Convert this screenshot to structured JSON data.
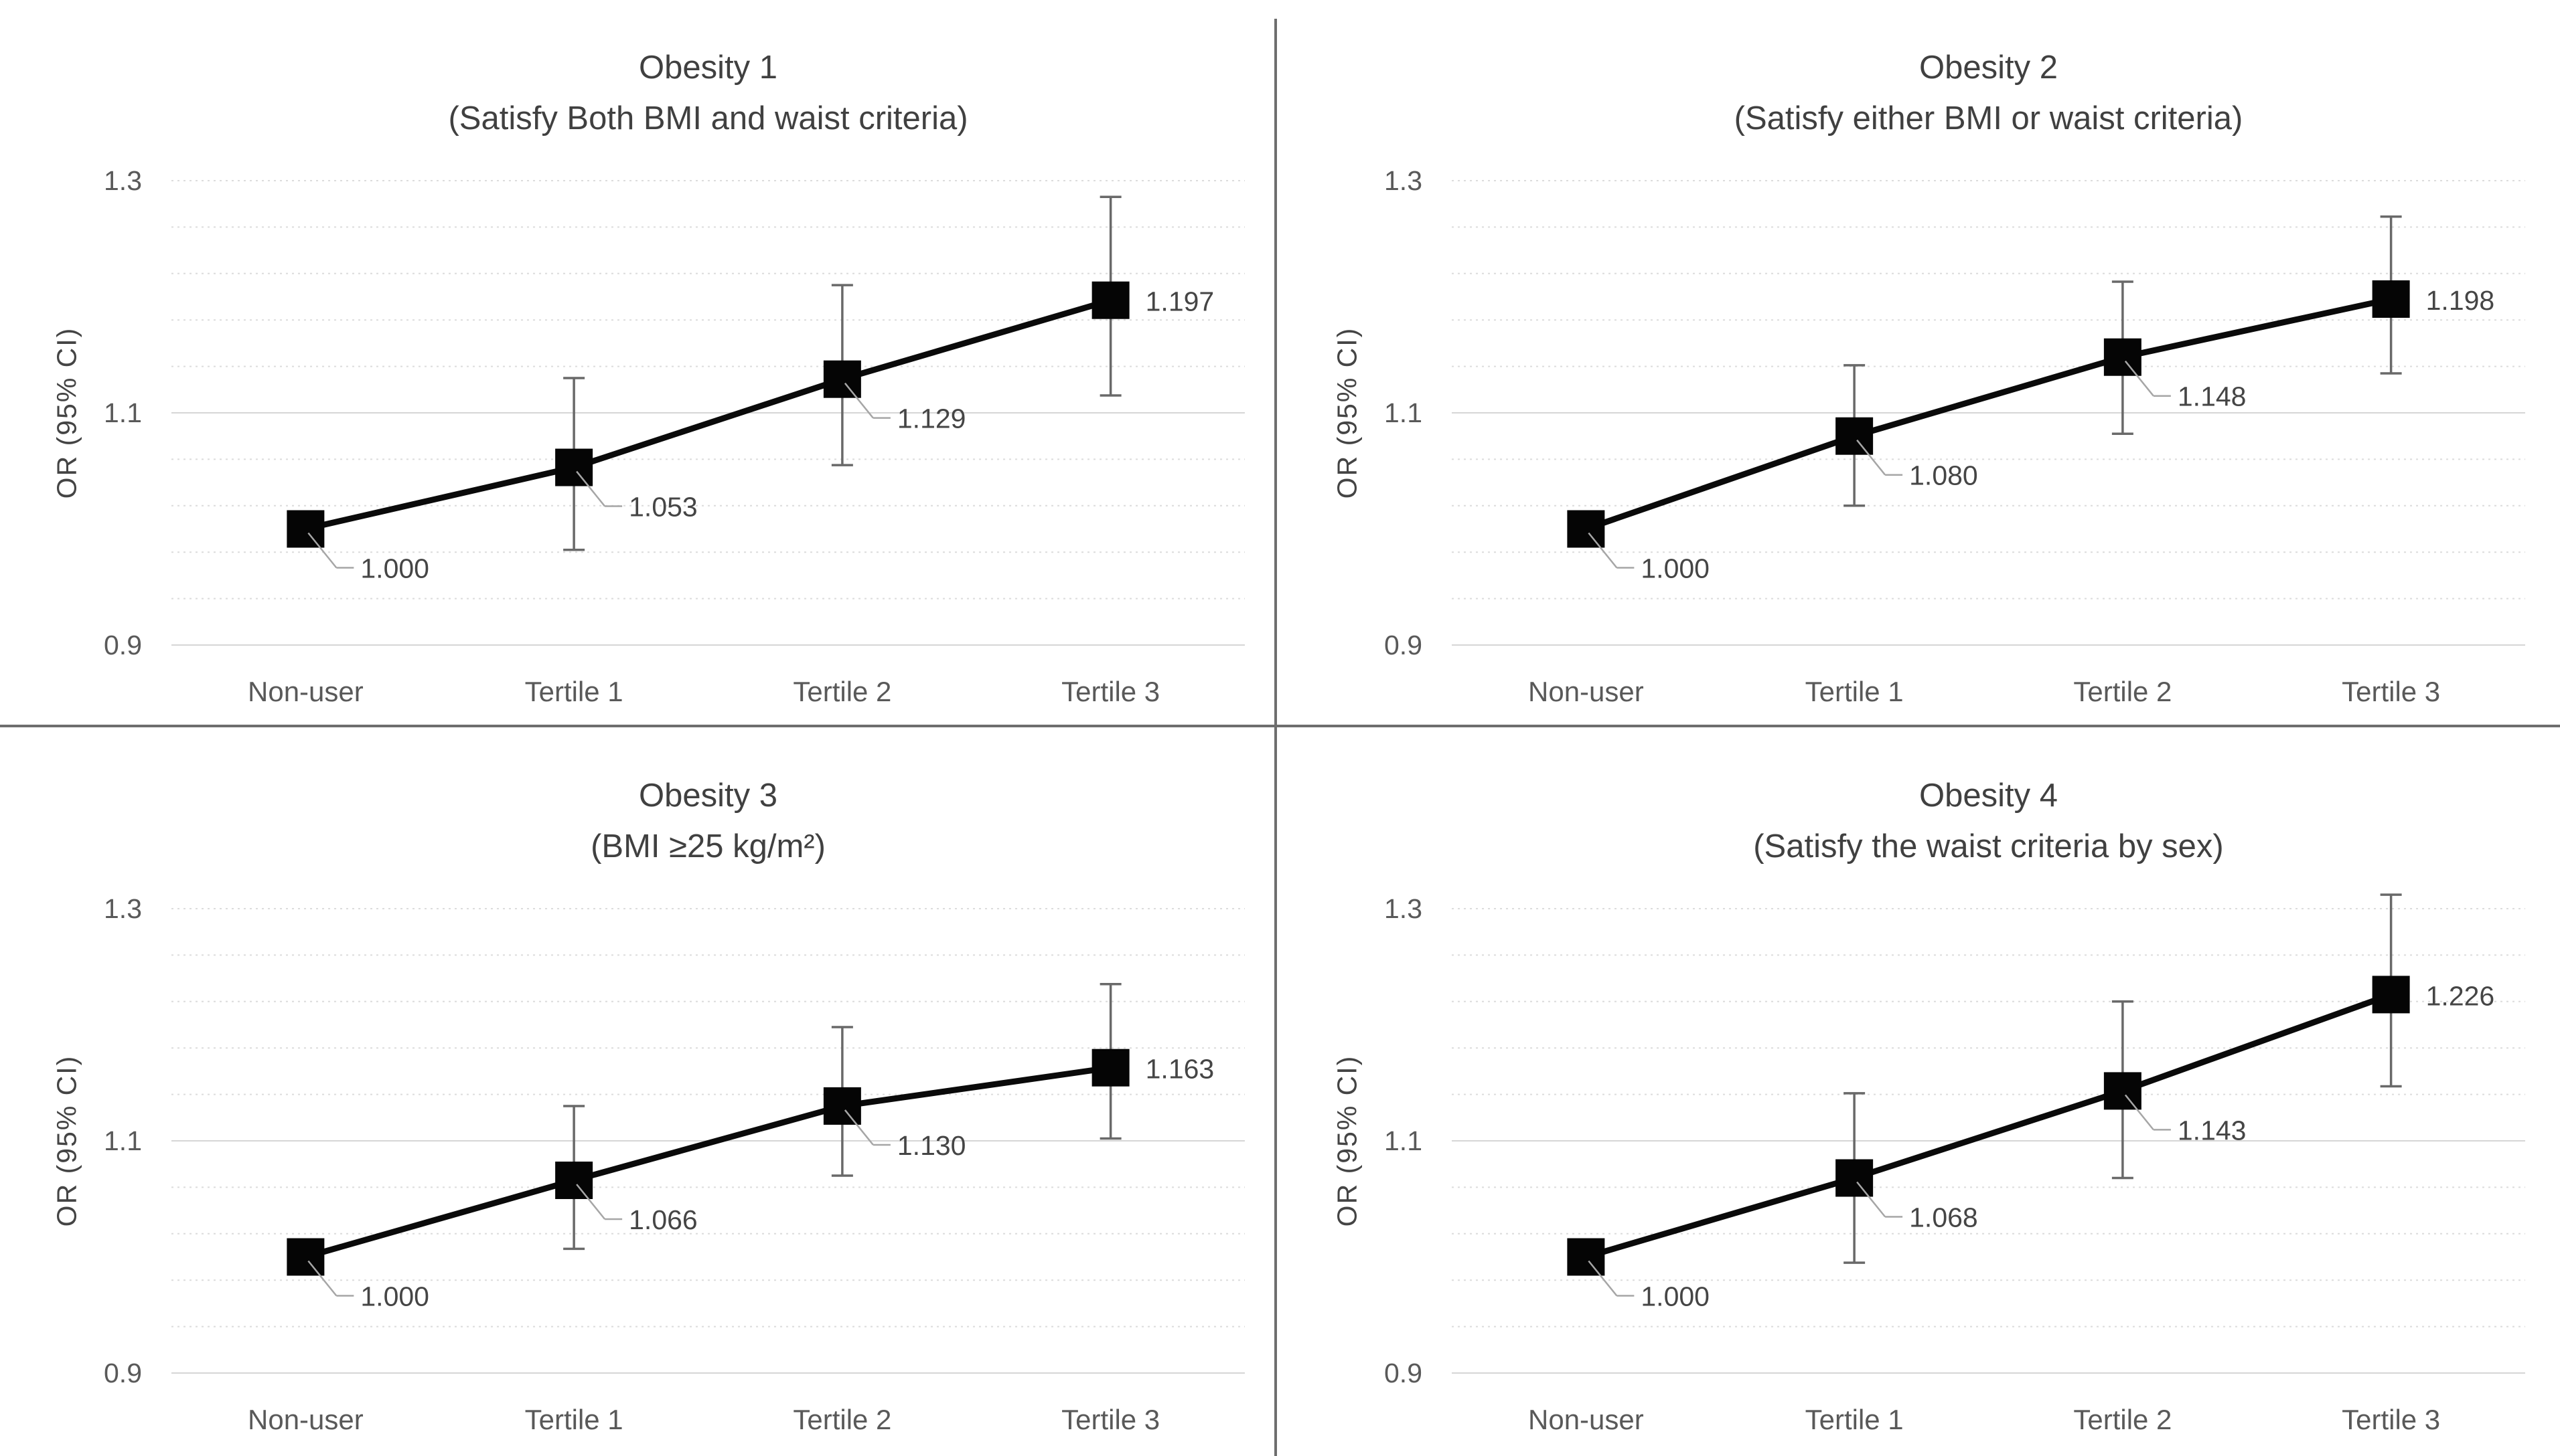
{
  "figure": {
    "y_axis_label": "OR (95% CI)",
    "colors": {
      "marker": "#050505",
      "series_line": "#0a0a0a",
      "error_bar": "#696969",
      "grid_major": "#d6d6d6",
      "grid_minor": "#dcdcdc",
      "text_dark": "#404040",
      "text_gray": "#595959",
      "data_label": "#454545",
      "leader": "#a6a6a6",
      "divider": "#6e6e6e"
    }
  },
  "chart_data": [
    {
      "type": "line",
      "title": "Obesity 1",
      "subtitle": "(Satisfy Both BMI and waist criteria)",
      "ylabel": "OR (95% CI)",
      "categories": [
        "Non-user",
        "Tertile 1",
        "Tertile 2",
        "Tertile 3"
      ],
      "values": [
        1.0,
        1.053,
        1.129,
        1.197
      ],
      "ci_low": [
        null,
        0.982,
        1.055,
        1.115
      ],
      "ci_high": [
        null,
        1.13,
        1.21,
        1.286
      ],
      "point_labels": [
        "1.000",
        "1.053",
        "1.129",
        "1.197"
      ],
      "ylim": [
        0.9,
        1.3
      ],
      "ytick_values": [
        1.3,
        1.1,
        0.9
      ],
      "ytick_labels": [
        "1.3",
        "1.1",
        "0.9"
      ],
      "minor_grid_step": 0.04,
      "grid": true,
      "legend": "none"
    },
    {
      "type": "line",
      "title": "Obesity 2",
      "subtitle": "(Satisfy either BMI or waist criteria)",
      "ylabel": "OR (95% CI)",
      "categories": [
        "Non-user",
        "Tertile 1",
        "Tertile 2",
        "Tertile 3"
      ],
      "values": [
        1.0,
        1.08,
        1.148,
        1.198
      ],
      "ci_low": [
        null,
        1.02,
        1.082,
        1.134
      ],
      "ci_high": [
        null,
        1.141,
        1.213,
        1.269
      ],
      "point_labels": [
        "1.000",
        "1.080",
        "1.148",
        "1.198"
      ],
      "ylim": [
        0.9,
        1.3
      ],
      "ytick_values": [
        1.3,
        1.1,
        0.9
      ],
      "ytick_labels": [
        "1.3",
        "1.1",
        "0.9"
      ],
      "minor_grid_step": 0.04,
      "grid": true,
      "legend": "none"
    },
    {
      "type": "line",
      "title": "Obesity 3",
      "subtitle": "(BMI ≥25 kg/m²)",
      "ylabel": "OR (95% CI)",
      "categories": [
        "Non-user",
        "Tertile 1",
        "Tertile 2",
        "Tertile 3"
      ],
      "values": [
        1.0,
        1.066,
        1.13,
        1.163
      ],
      "ci_low": [
        null,
        1.007,
        1.07,
        1.102
      ],
      "ci_high": [
        null,
        1.13,
        1.198,
        1.235
      ],
      "point_labels": [
        "1.000",
        "1.066",
        "1.130",
        "1.163"
      ],
      "ylim": [
        0.9,
        1.3
      ],
      "ytick_values": [
        1.3,
        1.1,
        0.9
      ],
      "ytick_labels": [
        "1.3",
        "1.1",
        "0.9"
      ],
      "minor_grid_step": 0.04,
      "grid": true,
      "legend": "none"
    },
    {
      "type": "line",
      "title": "Obesity 4",
      "subtitle": "(Satisfy the waist criteria by sex)",
      "ylabel": "OR (95% CI)",
      "categories": [
        "Non-user",
        "Tertile 1",
        "Tertile 2",
        "Tertile 3"
      ],
      "values": [
        1.0,
        1.068,
        1.143,
        1.226
      ],
      "ci_low": [
        null,
        0.995,
        1.068,
        1.147
      ],
      "ci_high": [
        null,
        1.141,
        1.22,
        1.312
      ],
      "point_labels": [
        "1.000",
        "1.068",
        "1.143",
        "1.226"
      ],
      "ylim": [
        0.9,
        1.3
      ],
      "ytick_values": [
        1.3,
        1.1,
        0.9
      ],
      "ytick_labels": [
        "1.3",
        "1.1",
        "0.9"
      ],
      "minor_grid_step": 0.04,
      "grid": true,
      "legend": "none"
    }
  ]
}
